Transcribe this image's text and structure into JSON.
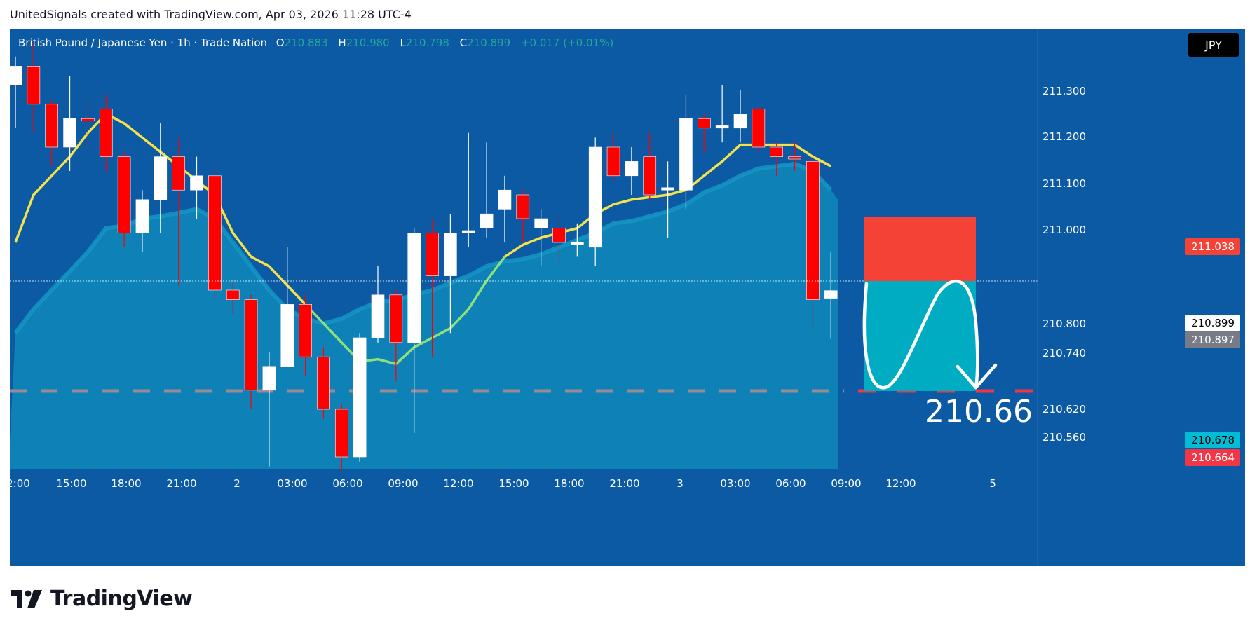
{
  "header": {
    "text": "UnitedSignals created with TradingView.com, Apr 03, 2026 11:28 UTC-4"
  },
  "legend": {
    "symbol": "British Pound / Japanese Yen · 1h · Trade Nation",
    "o_label": "O",
    "o_value": "210.883",
    "h_label": "H",
    "h_value": "210.980",
    "l_label": "L",
    "l_value": "210.798",
    "c_label": "C",
    "c_value": "210.899",
    "change": "+0.017 (+0.01%)"
  },
  "currency_button": "JPY",
  "price_tags": {
    "stop": "211.038",
    "last": "210.899",
    "prev": "210.897",
    "target": "210.678",
    "target2": "210.664"
  },
  "annotation": {
    "target_text": "210.66"
  },
  "brand": {
    "name": "TradingView"
  },
  "colors": {
    "background": "#0b5aa3",
    "up": "#ffffff",
    "down": "#ff0000",
    "ema_fast": "#f5e14b",
    "ema_fast_alt": "#8ee07a",
    "area_fill": "#0e86b8",
    "stop_zone": "#f44336",
    "target_zone": "#00acc1"
  },
  "chart_data": {
    "type": "candlestick",
    "symbol": "GBPJPY",
    "interval": "1h",
    "y_axis": {
      "ticks": [
        "211.300",
        "211.200",
        "211.100",
        "211.000",
        "210.800",
        "210.740",
        "210.620",
        "210.560"
      ]
    },
    "x_axis": {
      "ticks": [
        "2:00",
        "15:00",
        "18:00",
        "21:00",
        "2",
        "03:00",
        "06:00",
        "09:00",
        "12:00",
        "15:00",
        "18:00",
        "21:00",
        "3",
        "03:00",
        "06:00",
        "09:00",
        "12:00",
        "5"
      ]
    },
    "candles": [
      {
        "o": 211.33,
        "h": 211.39,
        "l": 211.24,
        "c": 211.37
      },
      {
        "o": 211.37,
        "h": 211.42,
        "l": 211.23,
        "c": 211.29
      },
      {
        "o": 211.29,
        "h": 211.3,
        "l": 211.16,
        "c": 211.2
      },
      {
        "o": 211.2,
        "h": 211.35,
        "l": 211.15,
        "c": 211.26
      },
      {
        "o": 211.26,
        "h": 211.3,
        "l": 211.2,
        "c": 211.255
      },
      {
        "o": 211.28,
        "h": 211.31,
        "l": 211.15,
        "c": 211.18
      },
      {
        "o": 211.18,
        "h": 211.19,
        "l": 210.99,
        "c": 211.02
      },
      {
        "o": 211.02,
        "h": 211.11,
        "l": 210.98,
        "c": 211.09
      },
      {
        "o": 211.09,
        "h": 211.25,
        "l": 211.02,
        "c": 211.18
      },
      {
        "o": 211.18,
        "h": 211.22,
        "l": 210.91,
        "c": 211.11
      },
      {
        "o": 211.11,
        "h": 211.18,
        "l": 211.05,
        "c": 211.14
      },
      {
        "o": 211.14,
        "h": 211.16,
        "l": 210.88,
        "c": 210.9
      },
      {
        "o": 210.9,
        "h": 210.92,
        "l": 210.85,
        "c": 210.88
      },
      {
        "o": 210.88,
        "h": 210.89,
        "l": 210.65,
        "c": 210.69
      },
      {
        "o": 210.69,
        "h": 210.77,
        "l": 210.53,
        "c": 210.74
      },
      {
        "o": 210.74,
        "h": 210.99,
        "l": 210.74,
        "c": 210.87
      },
      {
        "o": 210.87,
        "h": 210.89,
        "l": 210.72,
        "c": 210.76
      },
      {
        "o": 210.76,
        "h": 210.78,
        "l": 210.63,
        "c": 210.65
      },
      {
        "o": 210.65,
        "h": 210.66,
        "l": 210.52,
        "c": 210.55
      },
      {
        "o": 210.55,
        "h": 210.81,
        "l": 210.54,
        "c": 210.8
      },
      {
        "o": 210.8,
        "h": 210.95,
        "l": 210.79,
        "c": 210.89
      },
      {
        "o": 210.89,
        "h": 210.9,
        "l": 210.71,
        "c": 210.79
      },
      {
        "o": 210.79,
        "h": 211.03,
        "l": 210.6,
        "c": 211.02
      },
      {
        "o": 211.02,
        "h": 211.05,
        "l": 210.76,
        "c": 210.93
      },
      {
        "o": 210.93,
        "h": 211.06,
        "l": 210.81,
        "c": 211.02
      },
      {
        "o": 211.02,
        "h": 211.23,
        "l": 210.99,
        "c": 211.025
      },
      {
        "o": 211.03,
        "h": 211.21,
        "l": 211.01,
        "c": 211.06
      },
      {
        "o": 211.07,
        "h": 211.14,
        "l": 211.0,
        "c": 211.11
      },
      {
        "o": 211.1,
        "h": 211.11,
        "l": 211.0,
        "c": 211.05
      },
      {
        "o": 211.03,
        "h": 211.07,
        "l": 210.95,
        "c": 211.05
      },
      {
        "o": 211.03,
        "h": 211.06,
        "l": 210.96,
        "c": 211.0
      },
      {
        "o": 210.995,
        "h": 211.04,
        "l": 210.97,
        "c": 211.0
      },
      {
        "o": 210.99,
        "h": 211.22,
        "l": 210.95,
        "c": 211.2
      },
      {
        "o": 211.2,
        "h": 211.23,
        "l": 211.13,
        "c": 211.14
      },
      {
        "o": 211.14,
        "h": 211.2,
        "l": 211.1,
        "c": 211.17
      },
      {
        "o": 211.18,
        "h": 211.23,
        "l": 211.09,
        "c": 211.1
      },
      {
        "o": 211.11,
        "h": 211.17,
        "l": 211.01,
        "c": 211.115
      },
      {
        "o": 211.11,
        "h": 211.31,
        "l": 211.07,
        "c": 211.26
      },
      {
        "o": 211.26,
        "h": 211.27,
        "l": 211.19,
        "c": 211.24
      },
      {
        "o": 211.24,
        "h": 211.33,
        "l": 211.21,
        "c": 211.245
      },
      {
        "o": 211.24,
        "h": 211.32,
        "l": 211.21,
        "c": 211.27
      },
      {
        "o": 211.28,
        "h": 211.285,
        "l": 211.19,
        "c": 211.2
      },
      {
        "o": 211.2,
        "h": 211.21,
        "l": 211.14,
        "c": 211.18
      },
      {
        "o": 211.18,
        "h": 211.21,
        "l": 211.15,
        "c": 211.175
      },
      {
        "o": 211.17,
        "h": 211.18,
        "l": 210.82,
        "c": 210.88
      },
      {
        "o": 210.883,
        "h": 210.98,
        "l": 210.798,
        "c": 210.899
      }
    ],
    "ema_fast": [
      211.0,
      211.1,
      211.14,
      211.18,
      211.23,
      211.27,
      211.25,
      211.22,
      211.19,
      211.16,
      211.13,
      211.1,
      211.02,
      210.97,
      210.95,
      210.91,
      210.87,
      210.83,
      210.79,
      210.75,
      210.755,
      210.745,
      210.78,
      210.8,
      210.82,
      210.86,
      210.92,
      210.97,
      210.995,
      211.01,
      211.02,
      211.03,
      211.06,
      211.08,
      211.09,
      211.095,
      211.1,
      211.11,
      211.14,
      211.17,
      211.205,
      211.205,
      211.205,
      211.205,
      211.18,
      211.16
    ],
    "ema_slow": [
      210.81,
      210.86,
      210.9,
      210.94,
      210.98,
      211.03,
      211.035,
      211.05,
      211.055,
      211.062,
      211.07,
      211.05,
      211.0,
      210.95,
      210.9,
      210.86,
      210.84,
      210.83,
      210.84,
      210.86,
      210.875,
      210.88,
      210.89,
      210.9,
      210.915,
      210.93,
      210.95,
      210.96,
      210.965,
      210.975,
      210.99,
      211.005,
      211.02,
      211.04,
      211.045,
      211.055,
      211.065,
      211.08,
      211.105,
      211.12,
      211.14,
      211.155,
      211.16,
      211.165,
      211.15,
      211.11
    ],
    "position": {
      "side": "short",
      "entry": 210.899,
      "stop": 211.038,
      "target": 210.678
    }
  }
}
